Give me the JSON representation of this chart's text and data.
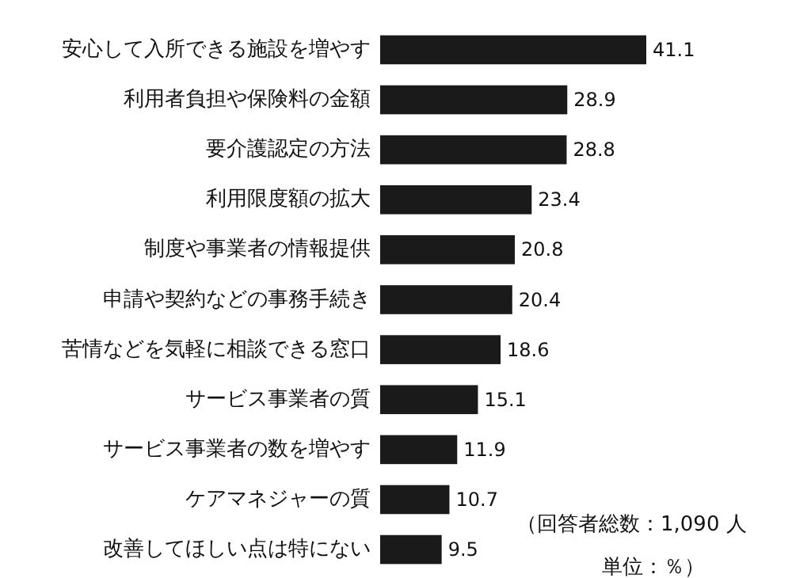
{
  "chart_data": {
    "type": "bar",
    "orientation": "horizontal",
    "categories": [
      "安心して入所できる施設を増やす",
      "利用者負担や保険料の金額",
      "要介護認定の方法",
      "利用限度額の拡大",
      "制度や事業者の情報提供",
      "申請や契約などの事務手続き",
      "苦情などを気軽に相談できる窓口",
      "サービス事業者の質",
      "サービス事業者の数を増やす",
      "ケアマネジャーの質",
      "改善してほしい点は特にない"
    ],
    "values": [
      41.1,
      28.9,
      28.8,
      23.4,
      20.8,
      20.4,
      18.6,
      15.1,
      11.9,
      10.7,
      9.5
    ],
    "color": "#1a1a1a",
    "data_labels": true,
    "annotations": [
      "（回答者総数：1,090 人",
      "単位：％）"
    ]
  }
}
